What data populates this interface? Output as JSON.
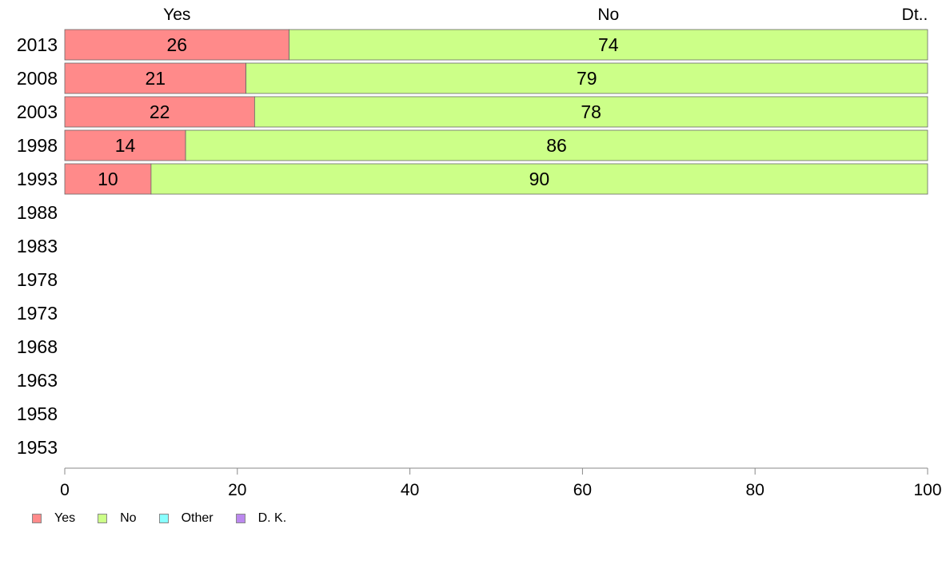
{
  "chart_data": {
    "type": "bar",
    "orientation": "horizontal",
    "stacked": true,
    "categories": [
      "2013",
      "2008",
      "2003",
      "1998",
      "1993",
      "1988",
      "1983",
      "1978",
      "1973",
      "1968",
      "1963",
      "1958",
      "1953"
    ],
    "series": [
      {
        "name": "Yes",
        "color": "#ff8a8a",
        "values": [
          26,
          21,
          22,
          14,
          10,
          null,
          null,
          null,
          null,
          null,
          null,
          null,
          null
        ]
      },
      {
        "name": "No",
        "color": "#ccff88",
        "values": [
          74,
          79,
          78,
          86,
          90,
          null,
          null,
          null,
          null,
          null,
          null,
          null,
          null
        ]
      },
      {
        "name": "Other",
        "color": "#88ffff",
        "values": [
          0,
          0,
          0,
          0,
          0,
          null,
          null,
          null,
          null,
          null,
          null,
          null,
          null
        ]
      },
      {
        "name": "D. K.",
        "color": "#bb88ee",
        "values": [
          0,
          0,
          0,
          0,
          0,
          null,
          null,
          null,
          null,
          null,
          null,
          null,
          null
        ]
      }
    ],
    "top_labels": [
      "Yes",
      "No",
      "Dt.."
    ],
    "xlim": [
      0,
      100
    ],
    "x_ticks": [
      0,
      20,
      40,
      60,
      80,
      100
    ],
    "grid": false,
    "legend_position": "bottom-left"
  }
}
